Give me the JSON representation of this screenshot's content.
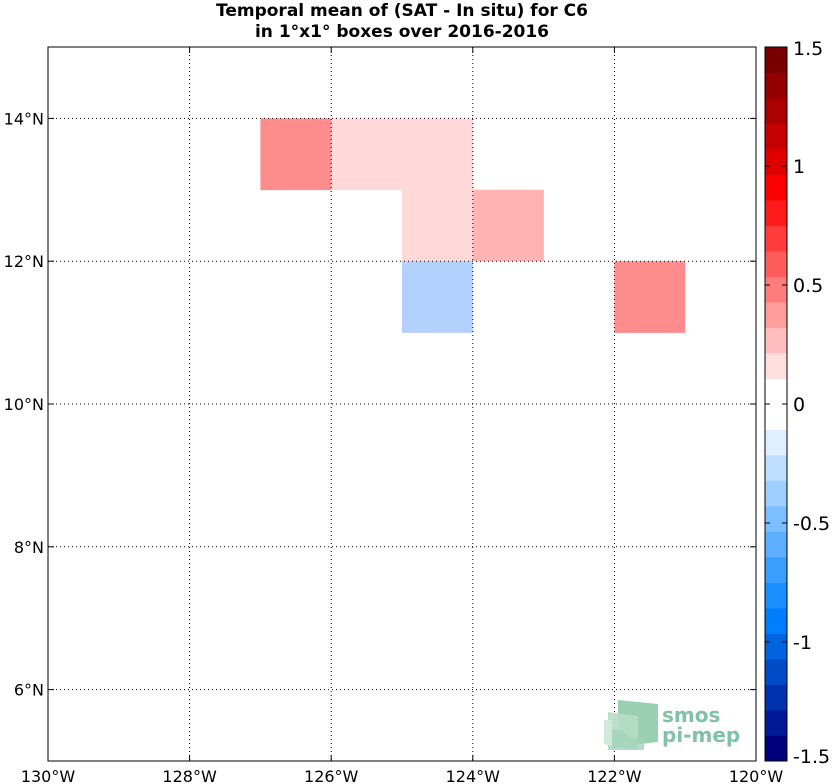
{
  "title": {
    "line1": "Temporal mean of (SAT - In situ) for C6",
    "line2": "in 1°x1° boxes over 2016-2016"
  },
  "map": {
    "lon_range": [
      -130,
      -120
    ],
    "lat_range": [
      5,
      15
    ],
    "x_ticks": [
      {
        "lon": -130,
        "label": "130°W"
      },
      {
        "lon": -128,
        "label": "128°W"
      },
      {
        "lon": -126,
        "label": "126°W"
      },
      {
        "lon": -124,
        "label": "124°W"
      },
      {
        "lon": -122,
        "label": "122°W"
      },
      {
        "lon": -120,
        "label": "120°W"
      }
    ],
    "y_ticks": [
      {
        "lat": 14,
        "label": "14°N"
      },
      {
        "lat": 12,
        "label": "12°N"
      },
      {
        "lat": 10,
        "label": "10°N"
      },
      {
        "lat": 8,
        "label": "8°N"
      },
      {
        "lat": 6,
        "label": "6°N"
      }
    ],
    "grid": "dotted",
    "cells": [
      {
        "lon": -127,
        "lat": 13,
        "value": 0.35
      },
      {
        "lon": -126,
        "lat": 13,
        "value": 0.2
      },
      {
        "lon": -125,
        "lat": 13,
        "value": 0.2
      },
      {
        "lon": -125,
        "lat": 12,
        "value": 0.2
      },
      {
        "lon": -124,
        "lat": 12,
        "value": 0.25
      },
      {
        "lon": -125,
        "lat": 11,
        "value": -0.3
      },
      {
        "lon": -124,
        "lat": 11,
        "value": 0.1
      },
      {
        "lon": -122,
        "lat": 11,
        "value": 0.35
      },
      {
        "lon": -121,
        "lat": 11,
        "value": 0.1
      },
      {
        "lon": -122,
        "lat": 9,
        "value": -0.1
      },
      {
        "lon": -122,
        "lat": 8,
        "value": 0.1
      }
    ]
  },
  "colorbar": {
    "range": [
      -1.5,
      1.5
    ],
    "ticks": [
      {
        "value": 1.5,
        "label": "1.5"
      },
      {
        "value": 1,
        "label": "1"
      },
      {
        "value": 0.5,
        "label": "0.5"
      },
      {
        "value": 0,
        "label": "0"
      },
      {
        "value": -0.5,
        "label": "-0.5"
      },
      {
        "value": -1,
        "label": "-1"
      },
      {
        "value": -1.5,
        "label": "-1.5"
      }
    ]
  },
  "logo": {
    "line1": "smos",
    "line2": "pi-mep"
  }
}
